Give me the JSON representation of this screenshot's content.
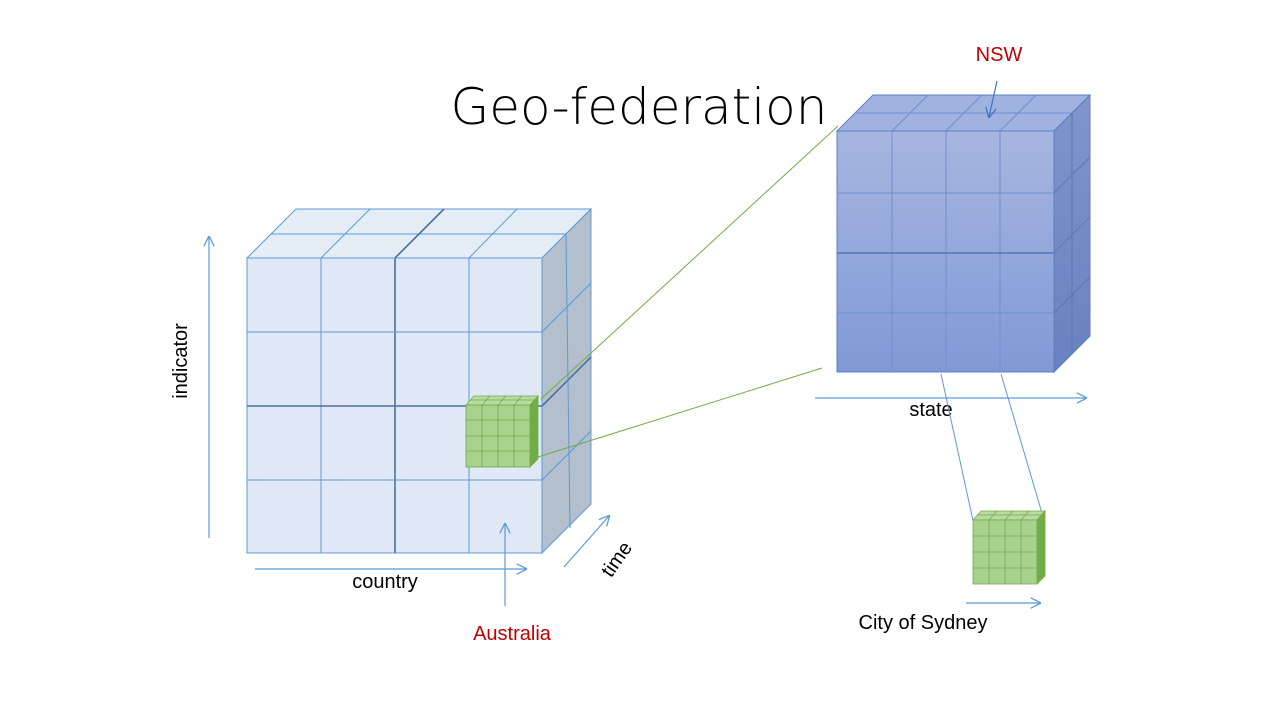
{
  "slide": {
    "title": "Geo-federation"
  },
  "labels": {
    "indicator": "indicator",
    "country": "country",
    "time": "time",
    "australia": "Australia",
    "nsw": "NSW",
    "state": "state",
    "city": "City of Sydney"
  },
  "colors": {
    "axis_blue": "#5b9bd5",
    "big_cube_front": "#dfe8f4",
    "big_cube_side": "#b3bfcc",
    "big_cube_edge": "#4f81bd",
    "state_cube": "#8ea6dc",
    "state_cube_side": "#6f88c6",
    "green_front": "#a9d18e",
    "green_edge": "#70ad47",
    "green_side": "#70ad47",
    "accent_red": "#c00000",
    "connector_green": "#70ad47"
  }
}
